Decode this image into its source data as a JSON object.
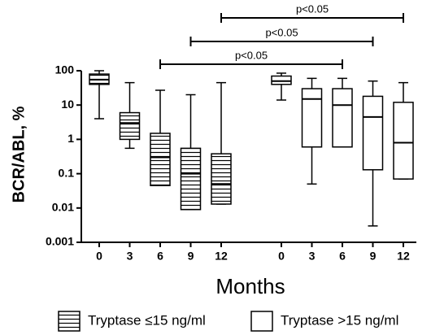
{
  "chart_data": {
    "type": "box",
    "y_label": "BCR/ABL, %",
    "x_label": "Months",
    "categories": [
      "0",
      "3",
      "6",
      "9",
      "12"
    ],
    "ylim": [
      0.001,
      100
    ],
    "yticks": [
      0.001,
      0.01,
      0.1,
      1,
      10,
      100
    ],
    "ylog": true,
    "series": [
      {
        "name": "Tryptase ≤15 ng/ml",
        "fill": "hatched",
        "max": [
          100,
          45,
          27,
          20,
          45
        ],
        "q3": [
          80,
          6,
          1.5,
          0.55,
          0.38
        ],
        "median": [
          55,
          3,
          0.3,
          0.1,
          0.05
        ],
        "q1": [
          40,
          1,
          0.045,
          0.009,
          0.013
        ],
        "min": [
          4,
          0.55,
          0.045,
          0.009,
          0.013
        ]
      },
      {
        "name": "Tryptase >15 ng/ml",
        "fill": "white",
        "max": [
          85,
          60,
          60,
          50,
          45
        ],
        "q3": [
          70,
          30,
          30,
          18,
          12
        ],
        "median": [
          50,
          15,
          10,
          4.5,
          0.8
        ],
        "q1": [
          40,
          0.6,
          0.6,
          0.13,
          0.07
        ],
        "min": [
          14,
          0.05,
          0.6,
          0.003,
          0.07
        ]
      }
    ],
    "annotations": [
      "p<0.05",
      "p<0.05",
      "p<0.05"
    ]
  }
}
